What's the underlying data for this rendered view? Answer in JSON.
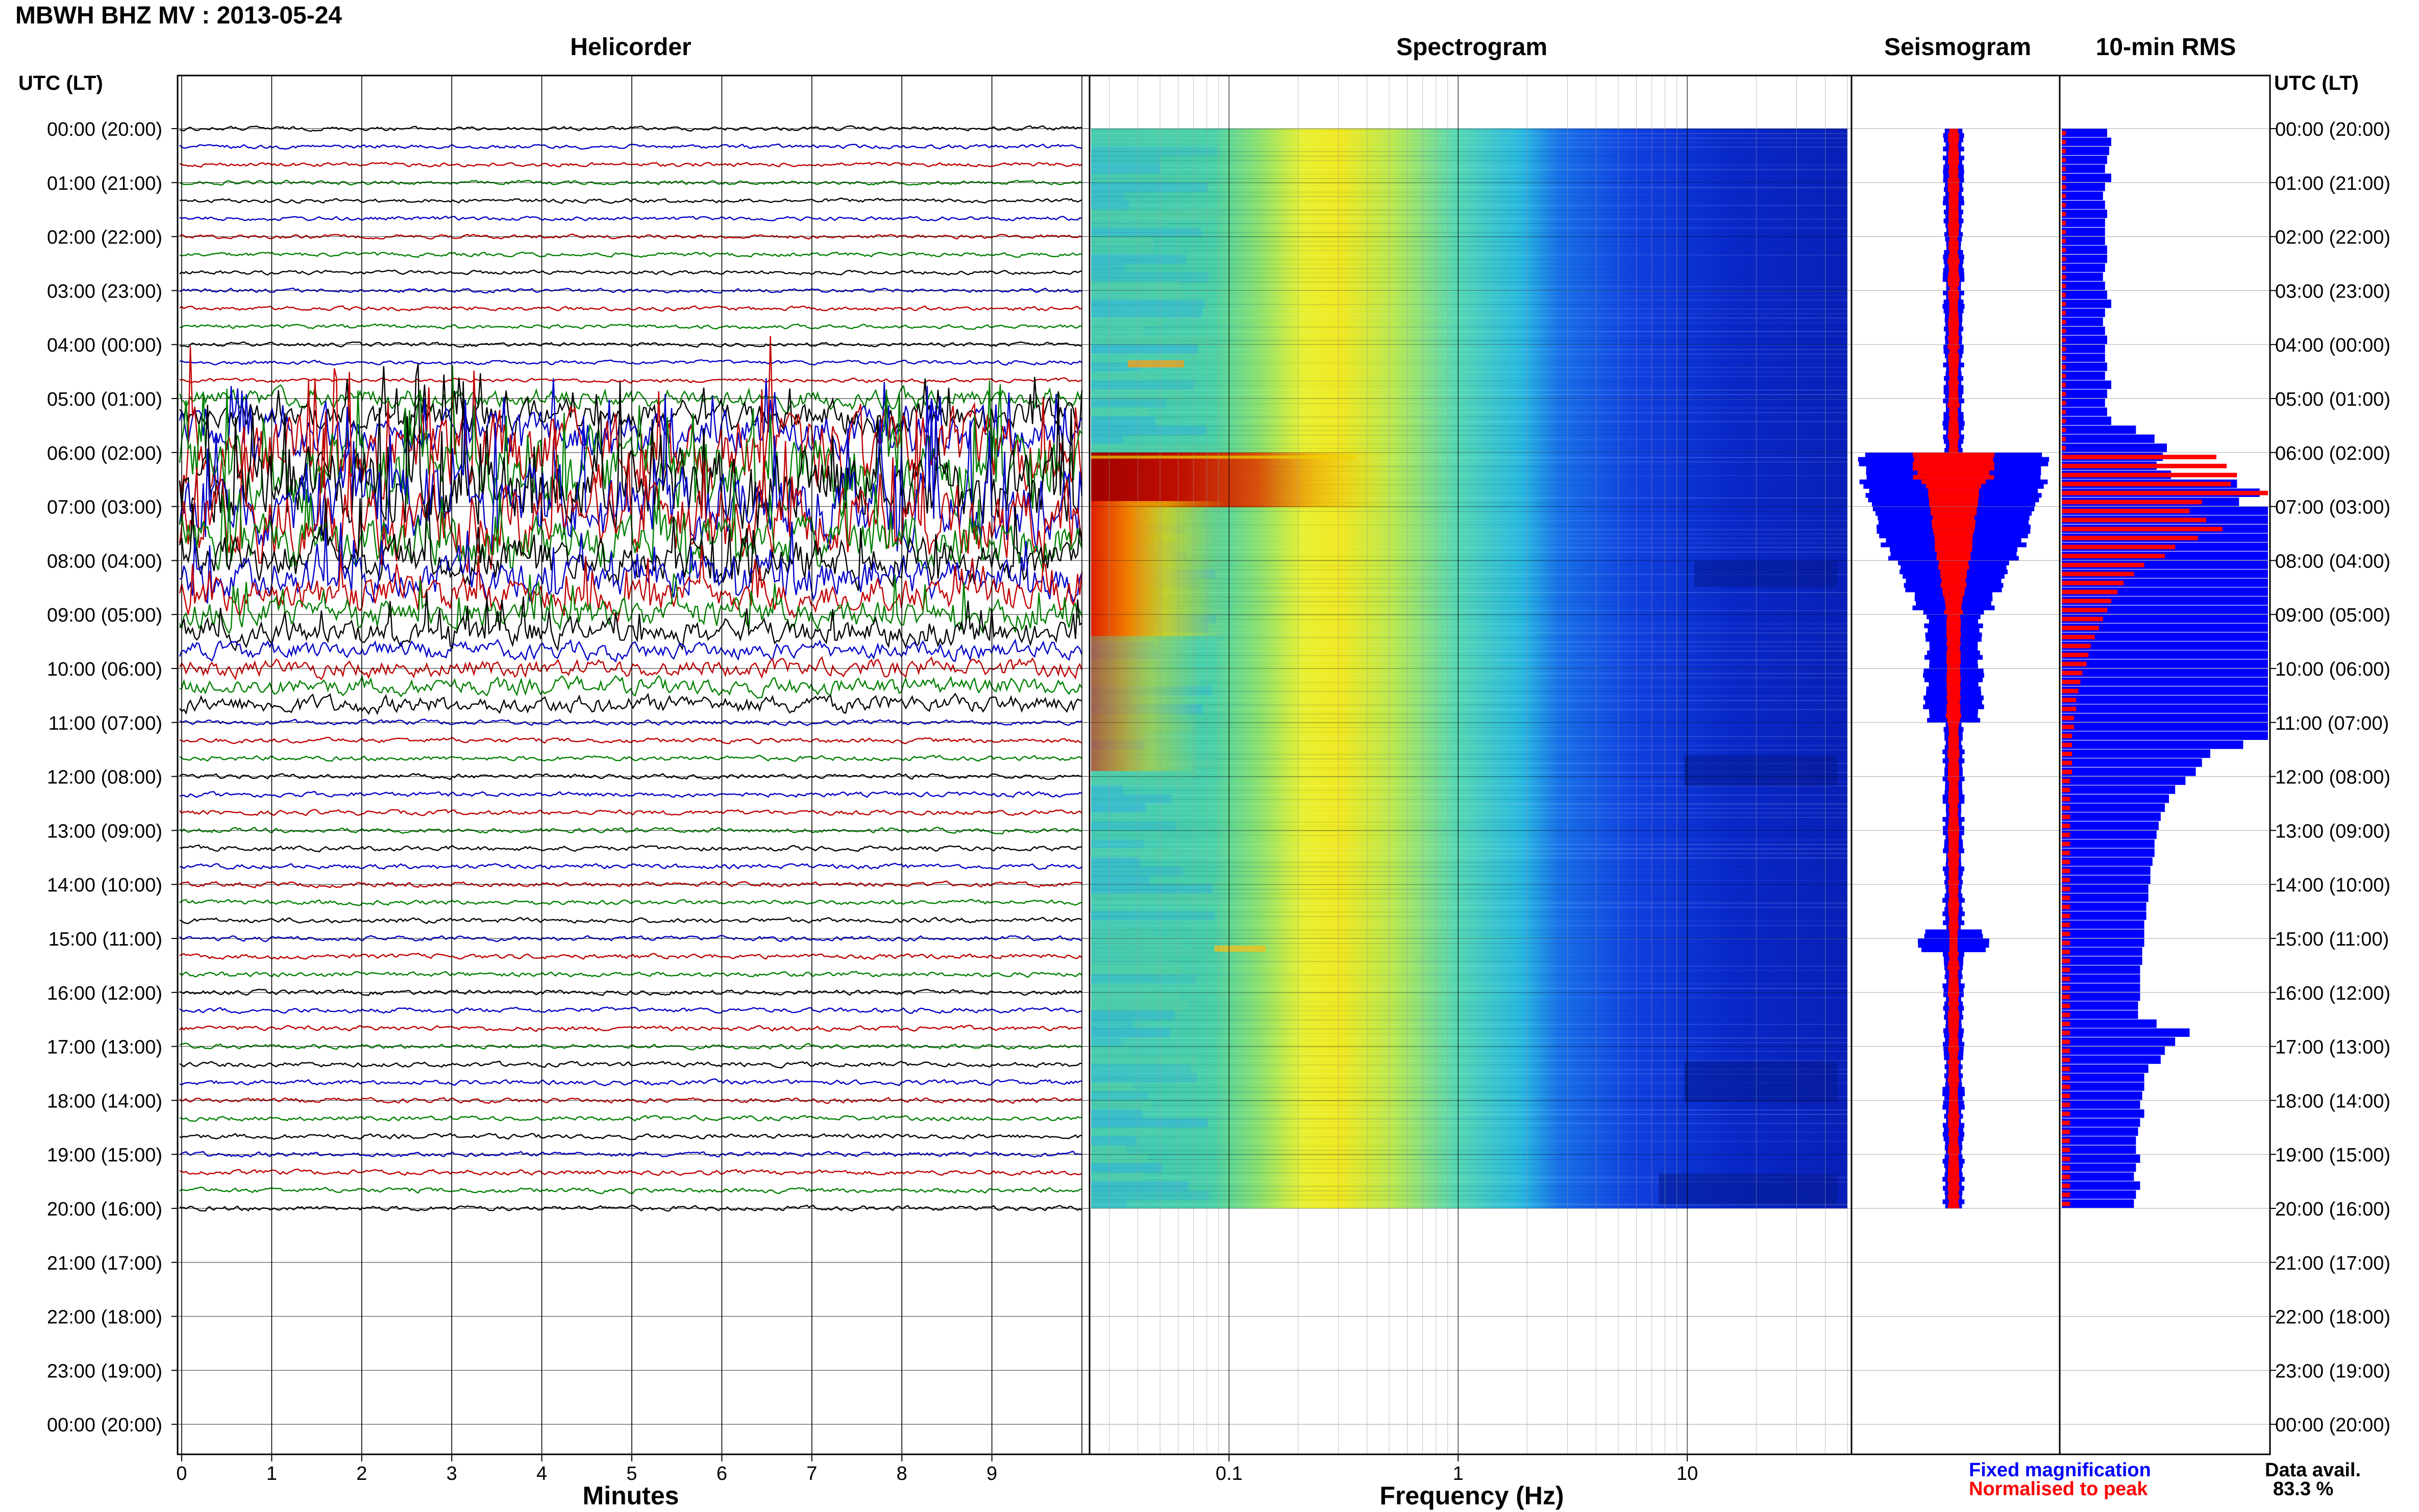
{
  "header": {
    "station_title": "MBWH BHZ MV : 2013-05-24",
    "time_axis_label": "UTC (LT)"
  },
  "chart_data": {
    "type": "line",
    "panels": {
      "helicorder": {
        "title": "Helicorder",
        "xlabel": "Minutes",
        "xticks": [
          "0",
          "1",
          "2",
          "3",
          "4",
          "5",
          "6",
          "7",
          "8",
          "9"
        ],
        "xlim": [
          0,
          10
        ],
        "trace_colors": [
          "#000000",
          "#0000c8",
          "#c00000",
          "#008000"
        ],
        "rows_with_data": 61
      },
      "spectrogram": {
        "title": "Spectrogram",
        "xlabel": "Frequency (Hz)",
        "xscale": "log",
        "xlim": [
          0.025,
          50
        ],
        "xticks": [
          "0.1",
          "1",
          "10"
        ]
      },
      "seismogram": {
        "title": "Seismogram",
        "legend": [
          "Fixed magnification",
          "Normalised to peak"
        ],
        "legend_colors": [
          "#0000ff",
          "#ff0000"
        ]
      },
      "rms": {
        "title": "10-min RMS"
      }
    },
    "time_labels": [
      "00:00 (20:00)",
      "01:00 (21:00)",
      "02:00 (22:00)",
      "03:00 (23:00)",
      "04:00 (00:00)",
      "05:00 (01:00)",
      "06:00 (02:00)",
      "07:00 (03:00)",
      "08:00 (04:00)",
      "09:00 (05:00)",
      "10:00 (06:00)",
      "11:00 (07:00)",
      "12:00 (08:00)",
      "13:00 (09:00)",
      "14:00 (10:00)",
      "15:00 (11:00)",
      "16:00 (12:00)",
      "17:00 (13:00)",
      "18:00 (14:00)",
      "19:00 (15:00)",
      "20:00 (16:00)",
      "21:00 (17:00)",
      "22:00 (18:00)",
      "23:00 (19:00)",
      "00:00 (20:00)"
    ],
    "event": {
      "start_utc": "06:00",
      "peak_utc": "06:30"
    },
    "rms_blue_fraction": [
      0.22,
      0.24,
      0.23,
      0.22,
      0.21,
      0.24,
      0.21,
      0.2,
      0.21,
      0.22,
      0.21,
      0.21,
      0.21,
      0.22,
      0.22,
      0.21,
      0.2,
      0.21,
      0.22,
      0.24,
      0.21,
      0.2,
      0.21,
      0.22,
      0.21,
      0.21,
      0.22,
      0.21,
      0.24,
      0.22,
      0.21,
      0.22,
      0.24,
      0.36,
      0.45,
      0.51,
      0.49,
      0.46,
      0.53,
      0.85,
      0.96,
      0.86,
      1.0,
      1.0,
      1.0,
      1.0,
      1.0,
      1.0,
      1.0,
      1.0,
      1.0,
      1.0,
      1.0,
      1.0,
      1.0,
      1.0,
      1.0,
      1.0,
      1.0,
      1.0,
      1.0,
      1.0,
      1.0,
      1.0,
      1.0,
      1.0,
      1.0,
      1.0,
      0.88,
      0.72,
      0.68,
      0.65,
      0.6,
      0.55,
      0.52,
      0.5,
      0.48,
      0.47,
      0.46,
      0.45,
      0.45,
      0.44,
      0.43,
      0.43,
      0.42,
      0.42,
      0.41,
      0.41,
      0.4,
      0.4,
      0.4,
      0.39,
      0.39,
      0.38,
      0.38,
      0.38,
      0.38,
      0.37,
      0.37,
      0.46,
      0.62,
      0.55,
      0.5,
      0.48,
      0.42,
      0.4,
      0.4,
      0.39,
      0.38,
      0.4,
      0.38,
      0.37,
      0.36,
      0.36,
      0.38,
      0.36,
      0.35,
      0.38,
      0.36,
      0.35
    ],
    "rms_red_fraction": [
      0.02,
      0.02,
      0.02,
      0.02,
      0.02,
      0.02,
      0.02,
      0.02,
      0.02,
      0.02,
      0.02,
      0.02,
      0.02,
      0.02,
      0.02,
      0.02,
      0.02,
      0.02,
      0.02,
      0.02,
      0.02,
      0.02,
      0.02,
      0.02,
      0.02,
      0.02,
      0.02,
      0.02,
      0.02,
      0.02,
      0.02,
      0.02,
      0.02,
      0.02,
      0.02,
      0.02,
      0.75,
      0.8,
      0.85,
      0.82,
      1.0,
      0.68,
      0.62,
      0.7,
      0.78,
      0.66,
      0.55,
      0.5,
      0.4,
      0.35,
      0.3,
      0.27,
      0.24,
      0.22,
      0.2,
      0.18,
      0.16,
      0.14,
      0.13,
      0.12,
      0.1,
      0.09,
      0.08,
      0.07,
      0.07,
      0.06,
      0.06,
      0.05,
      0.05,
      0.05,
      0.05,
      0.05,
      0.04,
      0.04,
      0.04,
      0.04,
      0.04,
      0.04,
      0.04,
      0.04,
      0.04,
      0.04,
      0.04,
      0.04,
      0.04,
      0.04,
      0.04,
      0.04,
      0.04,
      0.04,
      0.04,
      0.04,
      0.04,
      0.04,
      0.04,
      0.04,
      0.04,
      0.04,
      0.04,
      0.04,
      0.04,
      0.04,
      0.04,
      0.04,
      0.04,
      0.04,
      0.04,
      0.04,
      0.04,
      0.04,
      0.04,
      0.04,
      0.04,
      0.04,
      0.04,
      0.04,
      0.04,
      0.04,
      0.04,
      0.04
    ],
    "data_availability": {
      "label": "Data avail.",
      "value": "83.3 %"
    }
  }
}
